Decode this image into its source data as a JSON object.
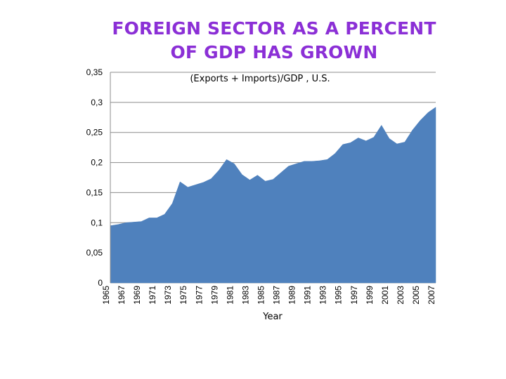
{
  "title": {
    "line1": "FOREIGN SECTOR AS A PERCENT",
    "line2": "OF GDP  HAS GROWN"
  },
  "chart_data": {
    "type": "area",
    "subtitle": "(Exports + Imports)/GDP , U.S.",
    "xlabel": "Year",
    "ylabel": "",
    "ylim": [
      0,
      0.35
    ],
    "grid": "horizontal",
    "series_color": "#4f81bd",
    "y_ticks": [
      {
        "value": 0,
        "label": "0"
      },
      {
        "value": 0.05,
        "label": "0,05"
      },
      {
        "value": 0.1,
        "label": "0,1"
      },
      {
        "value": 0.15,
        "label": "0,15"
      },
      {
        "value": 0.2,
        "label": "0,2"
      },
      {
        "value": 0.25,
        "label": "0,25"
      },
      {
        "value": 0.3,
        "label": "0,3"
      },
      {
        "value": 0.35,
        "label": "0,35"
      }
    ],
    "x_tick_labels": [
      "1965",
      "1967",
      "1969",
      "1971",
      "1973",
      "1975",
      "1977",
      "1979",
      "1981",
      "1983",
      "1985",
      "1987",
      "1989",
      "1991",
      "1993",
      "1995",
      "1997",
      "1999",
      "2001",
      "2003",
      "2005",
      "2007"
    ],
    "x": [
      1965,
      1966,
      1967,
      1968,
      1969,
      1970,
      1971,
      1972,
      1973,
      1974,
      1975,
      1976,
      1977,
      1978,
      1979,
      1980,
      1981,
      1982,
      1983,
      1984,
      1985,
      1986,
      1987,
      1988,
      1989,
      1990,
      1991,
      1992,
      1993,
      1994,
      1995,
      1996,
      1997,
      1998,
      1999,
      2000,
      2001,
      2002,
      2003,
      2004,
      2005,
      2006,
      2007
    ],
    "values": [
      0.095,
      0.097,
      0.1,
      0.101,
      0.102,
      0.108,
      0.108,
      0.114,
      0.132,
      0.168,
      0.159,
      0.163,
      0.167,
      0.173,
      0.187,
      0.205,
      0.198,
      0.18,
      0.171,
      0.179,
      0.169,
      0.172,
      0.183,
      0.194,
      0.198,
      0.202,
      0.202,
      0.203,
      0.205,
      0.215,
      0.23,
      0.233,
      0.241,
      0.236,
      0.242,
      0.262,
      0.24,
      0.231,
      0.234,
      0.254,
      0.27,
      0.283,
      0.292
    ]
  }
}
